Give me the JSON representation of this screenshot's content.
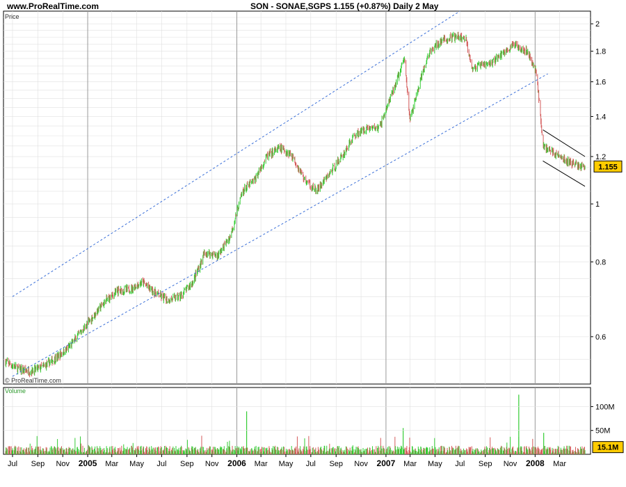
{
  "header": {
    "site": "www.ProRealTime.com",
    "title": "SON - SONAE,SGPS    1.155 (+0.87%)    Daily  2 May"
  },
  "panels": {
    "price_label": "Price",
    "volume_label": "Volume",
    "copyright": "© ProRealTime.com"
  },
  "colors": {
    "up": "#33cc33",
    "down": "#d45a5a",
    "channel": "#3a6fd8",
    "grid": "#e0e0e0",
    "year_line": "#999999",
    "badge": "#ffcc00"
  },
  "chart_data": [
    {
      "type": "candlestick",
      "scale": "log",
      "title": "SON - SONAE,SGPS",
      "ylabel": "Price",
      "ylim": [
        0.5,
        2.1
      ],
      "yticks": [
        0.6,
        0.8,
        1,
        1.2,
        1.4,
        1.6,
        1.8,
        2
      ],
      "last_value": "1.155",
      "x_ticks": [
        "Jul",
        "Sep",
        "Nov",
        "2005",
        "Mar",
        "May",
        "Jul",
        "Sep",
        "Nov",
        "2006",
        "Mar",
        "May",
        "Jul",
        "Sep",
        "Nov",
        "2007",
        "Mar",
        "May",
        "Jul",
        "Sep",
        "Nov",
        "2008",
        "Mar"
      ],
      "x_dates": [
        "2004-07",
        "2004-09",
        "2004-11",
        "2005-01",
        "2005-03",
        "2005-05",
        "2005-07",
        "2005-09",
        "2005-11",
        "2006-01",
        "2006-03",
        "2006-05",
        "2006-07",
        "2006-09",
        "2006-11",
        "2007-01",
        "2007-03",
        "2007-05",
        "2007-07",
        "2007-09",
        "2007-11",
        "2008-01",
        "2008-03"
      ],
      "year_lines": [
        "2005-01",
        "2006-01",
        "2007-01",
        "2008-01"
      ],
      "x_range": [
        "2004-06-14",
        "2008-05-02"
      ],
      "close_series": [
        [
          "2004-06-14",
          0.545
        ],
        [
          "2004-07-15",
          0.53
        ],
        [
          "2004-08-15",
          0.525
        ],
        [
          "2004-09-15",
          0.535
        ],
        [
          "2004-10-15",
          0.552
        ],
        [
          "2004-11-15",
          0.575
        ],
        [
          "2004-12-15",
          0.61
        ],
        [
          "2005-01-15",
          0.65
        ],
        [
          "2005-02-15",
          0.69
        ],
        [
          "2005-03-15",
          0.715
        ],
        [
          "2005-04-15",
          0.72
        ],
        [
          "2005-05-15",
          0.74
        ],
        [
          "2005-06-15",
          0.71
        ],
        [
          "2005-07-15",
          0.69
        ],
        [
          "2005-08-15",
          0.7
        ],
        [
          "2005-09-15",
          0.74
        ],
        [
          "2005-10-15",
          0.83
        ],
        [
          "2005-11-15",
          0.82
        ],
        [
          "2005-12-15",
          0.88
        ],
        [
          "2006-01-15",
          1.05
        ],
        [
          "2006-02-15",
          1.1
        ],
        [
          "2006-03-15",
          1.2
        ],
        [
          "2006-04-15",
          1.24
        ],
        [
          "2006-05-15",
          1.21
        ],
        [
          "2006-06-15",
          1.1
        ],
        [
          "2006-07-15",
          1.05
        ],
        [
          "2006-08-15",
          1.12
        ],
        [
          "2006-09-15",
          1.2
        ],
        [
          "2006-10-15",
          1.3
        ],
        [
          "2006-11-15",
          1.34
        ],
        [
          "2006-12-15",
          1.34
        ],
        [
          "2007-01-15",
          1.52
        ],
        [
          "2007-02-15",
          1.75
        ],
        [
          "2007-03-01",
          1.38
        ],
        [
          "2007-03-20",
          1.55
        ],
        [
          "2007-04-15",
          1.78
        ],
        [
          "2007-05-15",
          1.87
        ],
        [
          "2007-06-15",
          1.9
        ],
        [
          "2007-07-15",
          1.89
        ],
        [
          "2007-08-01",
          1.68
        ],
        [
          "2007-08-15",
          1.7
        ],
        [
          "2007-09-15",
          1.72
        ],
        [
          "2007-10-15",
          1.79
        ],
        [
          "2007-11-15",
          1.85
        ],
        [
          "2007-12-15",
          1.79
        ],
        [
          "2008-01-05",
          1.65
        ],
        [
          "2008-01-20",
          1.25
        ],
        [
          "2008-02-15",
          1.22
        ],
        [
          "2008-03-15",
          1.18
        ],
        [
          "2008-04-15",
          1.16
        ],
        [
          "2008-05-02",
          1.155
        ]
      ],
      "channel_lines": [
        {
          "from": [
            "2004-07-01",
            0.7
          ],
          "to": [
            "2007-07-01",
            2.1
          ]
        },
        {
          "from": [
            "2004-07-01",
            0.515
          ],
          "to": [
            "2008-02-01",
            1.65
          ]
        }
      ],
      "downtrend_lines": [
        {
          "from": [
            "2008-01-20",
            1.33
          ],
          "to": [
            "2008-05-02",
            1.2
          ]
        },
        {
          "from": [
            "2008-01-20",
            1.18
          ],
          "to": [
            "2008-05-02",
            1.07
          ]
        }
      ]
    },
    {
      "type": "bar",
      "ylabel": "Volume",
      "yticks": [
        "50M",
        "100M"
      ],
      "ytick_values": [
        50,
        100
      ],
      "unit": "M",
      "last_value": "15.1M",
      "typical_volume": 12,
      "spikes": [
        [
          "2006-01-25",
          90
        ],
        [
          "2007-02-12",
          55
        ],
        [
          "2007-11-22",
          125
        ],
        [
          "2008-01-22",
          45
        ]
      ]
    }
  ]
}
